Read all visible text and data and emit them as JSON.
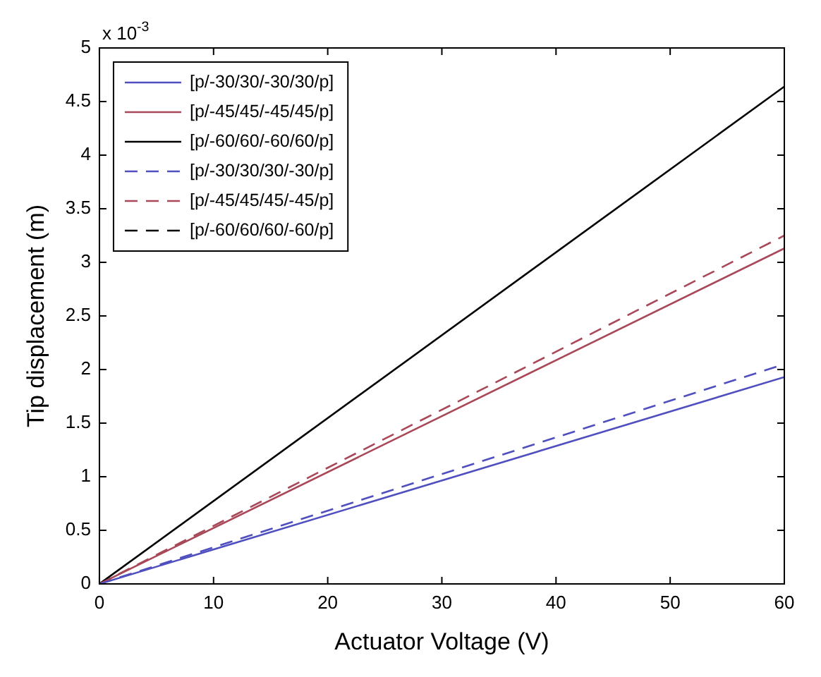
{
  "chart_data": {
    "type": "line",
    "xlabel": "Actuator Voltage (V)",
    "ylabel": "Tip displacement (m)",
    "annotations": [
      "x 10$^{-3}$"
    ],
    "x": [
      0,
      60
    ],
    "series": [
      {
        "name": "[p/-30/30/-30/30/p]",
        "color": "#4f4fbf",
        "values": [
          0,
          1.93
        ],
        "line_style": "solid"
      },
      {
        "name": "[p/-45/45/-45/45/p]",
        "color": "#a84858",
        "values": [
          0,
          3.13
        ],
        "line_style": "solid"
      },
      {
        "name": "[p/-60/60/-60/60/p]",
        "color": "#000000",
        "values": [
          0,
          4.64
        ],
        "line_style": "solid"
      },
      {
        "name": "[p/-30/30/30/-30/p]",
        "color": "#4f4fbf",
        "values": [
          0,
          2.05
        ],
        "line_style": "dashed"
      },
      {
        "name": "[p/-45/45/45/-45/p]",
        "color": "#a84858",
        "values": [
          0,
          3.25
        ],
        "line_style": "dashed"
      },
      {
        "name": "[p/-60/60/60/-60/p]",
        "color": "#000000",
        "values": [
          null,
          null
        ],
        "line_style": "dashed"
      }
    ],
    "xlim": [
      0,
      60
    ],
    "xticks": [
      0,
      10,
      20,
      30,
      40,
      50,
      60
    ],
    "ylim": [
      0,
      5
    ],
    "yticks": [
      0,
      0.5,
      1,
      1.5,
      2,
      2.5,
      3,
      3.5,
      4,
      4.5,
      5
    ],
    "grid": false,
    "legend": "top left",
    "marker": "none"
  }
}
